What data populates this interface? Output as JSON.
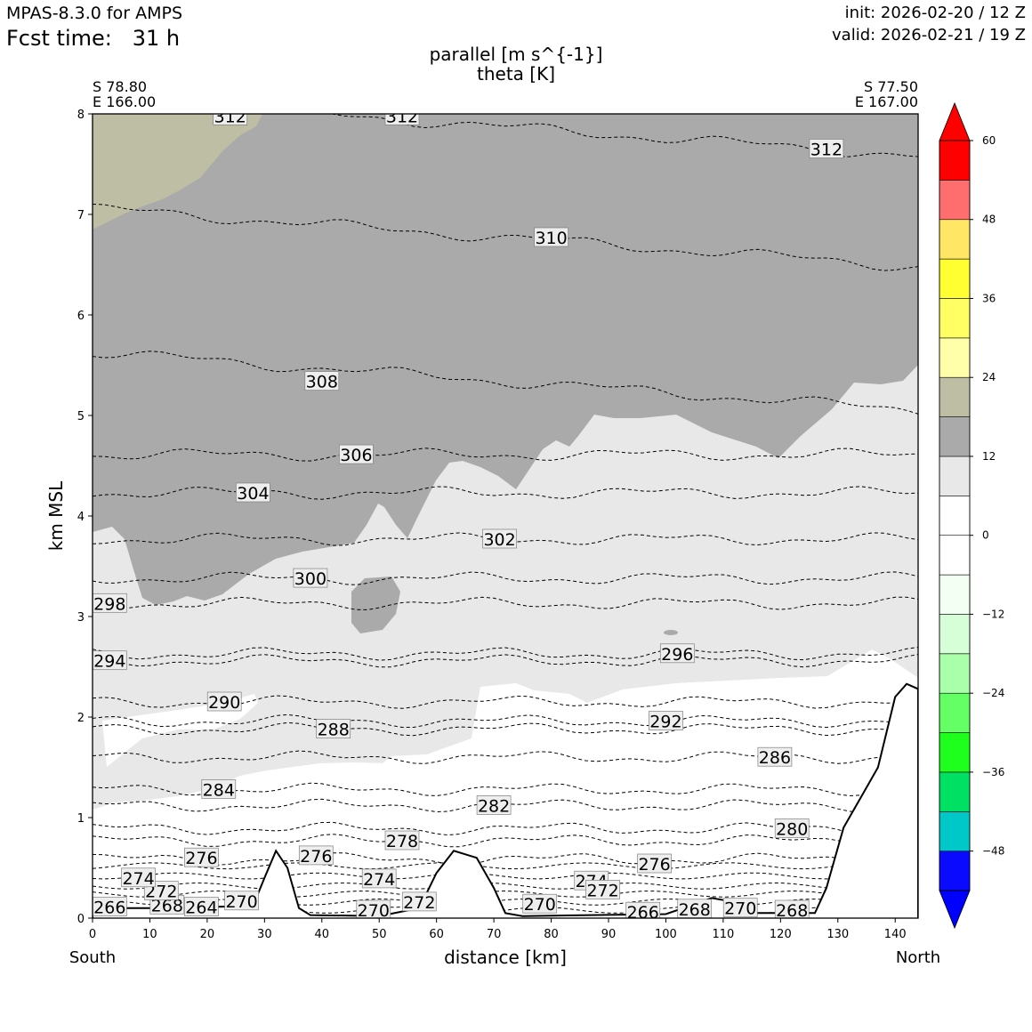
{
  "header": {
    "model": "MPAS-8.3.0 for AMPS",
    "fcst_label": "Fcst time:",
    "fcst_value": "31 h",
    "init": "init: 2026-02-20 / 12 Z",
    "valid": "valid: 2026-02-21 / 19 Z"
  },
  "title": {
    "line1": "parallel [m s^{-1}]",
    "line2": "theta [K]"
  },
  "corners": {
    "left_lat": "S 78.80",
    "left_lon": "E 166.00",
    "right_lat": "S 77.50",
    "right_lon": "E 167.00"
  },
  "chart_data": {
    "type": "cross-section",
    "xlabel": "distance [km]",
    "ylabel": "km MSL",
    "xlim": [
      0,
      144
    ],
    "ylim": [
      0,
      8
    ],
    "xticks": [
      0,
      10,
      20,
      30,
      40,
      50,
      60,
      70,
      80,
      90,
      100,
      110,
      120,
      130,
      140
    ],
    "yticks": [
      0,
      1,
      2,
      3,
      4,
      5,
      6,
      7,
      8
    ],
    "left_end": "South",
    "right_end": "North",
    "terrain": [
      [
        0,
        0.1
      ],
      [
        10,
        0.1
      ],
      [
        28,
        0.12
      ],
      [
        30,
        0.4
      ],
      [
        32,
        0.67
      ],
      [
        34,
        0.5
      ],
      [
        36,
        0.1
      ],
      [
        38,
        0.03
      ],
      [
        50,
        0.02
      ],
      [
        57,
        0.1
      ],
      [
        60,
        0.45
      ],
      [
        63,
        0.67
      ],
      [
        67,
        0.6
      ],
      [
        70,
        0.3
      ],
      [
        72,
        0.05
      ],
      [
        75,
        0.02
      ],
      [
        100,
        0.04
      ],
      [
        108,
        0.2
      ],
      [
        111,
        0.17
      ],
      [
        113,
        0.05
      ],
      [
        126,
        0.05
      ],
      [
        128,
        0.3
      ],
      [
        131,
        0.9
      ],
      [
        134,
        1.2
      ],
      [
        137,
        1.5
      ],
      [
        140,
        2.2
      ],
      [
        142,
        2.33
      ],
      [
        144,
        2.28
      ]
    ],
    "filled_regions": [
      {
        "range": "18 to 24 m s-1",
        "color": "#bebea5",
        "desc": "upper-left corner above ~6.8 km"
      },
      {
        "range": "12 to 18 m s-1",
        "color": "#aaaaaa",
        "desc": "upper layer above ~4-5 km"
      },
      {
        "range": "6 to 12 m s-1",
        "color": "#e8e8e8",
        "desc": "mid layer between ~1 and ~4 km"
      }
    ],
    "theta_contours": [
      {
        "value": 266,
        "label": "266",
        "x": 3,
        "y": 0.11
      },
      {
        "value": 268,
        "label": "268",
        "x": 13,
        "y": 0.13
      },
      {
        "value": 264,
        "label": "264",
        "x": 19,
        "y": 0.11
      },
      {
        "value": 270,
        "label": "270",
        "x": 26,
        "y": 0.17
      },
      {
        "value": 272,
        "label": "272",
        "x": 12,
        "y": 0.27
      },
      {
        "value": 274,
        "label": "274",
        "x": 8,
        "y": 0.4
      },
      {
        "value": 276,
        "label": "276",
        "x": 19,
        "y": 0.6
      },
      {
        "value": 276,
        "label": "276",
        "x": 39,
        "y": 0.62
      },
      {
        "value": 278,
        "label": "278",
        "x": 54,
        "y": 0.77
      },
      {
        "value": 274,
        "label": "274",
        "x": 50,
        "y": 0.39
      },
      {
        "value": 272,
        "label": "272",
        "x": 57,
        "y": 0.16
      },
      {
        "value": 270,
        "label": "270",
        "x": 49,
        "y": 0.08
      },
      {
        "value": 270,
        "label": "270",
        "x": 78,
        "y": 0.14
      },
      {
        "value": 274,
        "label": "274",
        "x": 87,
        "y": 0.37
      },
      {
        "value": 272,
        "label": "272",
        "x": 89,
        "y": 0.28
      },
      {
        "value": 276,
        "label": "276",
        "x": 98,
        "y": 0.54
      },
      {
        "value": 266,
        "label": "266",
        "x": 96,
        "y": 0.06
      },
      {
        "value": 268,
        "label": "268",
        "x": 105,
        "y": 0.09
      },
      {
        "value": 270,
        "label": "270",
        "x": 113,
        "y": 0.1
      },
      {
        "value": 268,
        "label": "268",
        "x": 122,
        "y": 0.08
      },
      {
        "value": 280,
        "label": "280",
        "x": 122,
        "y": 0.89
      },
      {
        "value": 282,
        "label": "282",
        "x": 70,
        "y": 1.12
      },
      {
        "value": 284,
        "label": "284",
        "x": 22,
        "y": 1.28
      },
      {
        "value": 286,
        "label": "286",
        "x": 119,
        "y": 1.6
      },
      {
        "value": 288,
        "label": "288",
        "x": 42,
        "y": 1.88
      },
      {
        "value": 290,
        "label": "290",
        "x": 23,
        "y": 2.15
      },
      {
        "value": 292,
        "label": "292",
        "x": 100,
        "y": 1.96
      },
      {
        "value": 294,
        "label": "294",
        "x": 3,
        "y": 2.56
      },
      {
        "value": 296,
        "label": "296",
        "x": 102,
        "y": 2.63
      },
      {
        "value": 298,
        "label": "298",
        "x": 3,
        "y": 3.13
      },
      {
        "value": 300,
        "label": "300",
        "x": 38,
        "y": 3.38
      },
      {
        "value": 302,
        "label": "302",
        "x": 71,
        "y": 3.77
      },
      {
        "value": 304,
        "label": "304",
        "x": 28,
        "y": 4.23
      },
      {
        "value": 306,
        "label": "306",
        "x": 46,
        "y": 4.61
      },
      {
        "value": 308,
        "label": "308",
        "x": 40,
        "y": 5.34
      },
      {
        "value": 310,
        "label": "310",
        "x": 80,
        "y": 6.77
      },
      {
        "value": 312,
        "label": "312",
        "x": 24,
        "y": 7.98
      },
      {
        "value": 312,
        "label": "312",
        "x": 54,
        "y": 7.98
      },
      {
        "value": 312,
        "label": "312",
        "x": 128,
        "y": 7.65
      }
    ],
    "colorbar": {
      "label_ticks": [
        "60",
        "48",
        "36",
        "24",
        "12",
        "0",
        "−12",
        "−24",
        "−36",
        "−48"
      ],
      "tick_values": [
        60,
        48,
        36,
        24,
        12,
        0,
        -12,
        -24,
        -36,
        -48
      ],
      "range": [
        -54,
        60
      ],
      "bounds": [
        -54,
        -48,
        -42,
        -36,
        -30,
        -24,
        -18,
        -12,
        -6,
        0,
        6,
        12,
        18,
        24,
        30,
        36,
        42,
        48,
        54,
        60
      ],
      "colors": [
        "#0a0aff",
        "#00c8c8",
        "#00e164",
        "#1eff1e",
        "#64ff64",
        "#aaffaa",
        "#d7ffd7",
        "#f2fff2",
        "#ffffff",
        "#ffffff",
        "#e8e8e8",
        "#aaaaaa",
        "#bebea5",
        "#ffffaa",
        "#ffff64",
        "#ffff32",
        "#ffe664",
        "#ff6e6e",
        "#ff0000"
      ],
      "under_color": "#0000ff",
      "over_color": "#ff0000"
    }
  }
}
